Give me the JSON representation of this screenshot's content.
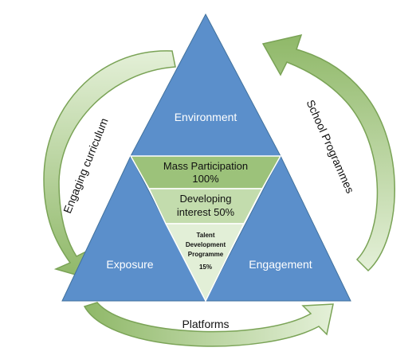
{
  "triangles": {
    "top": "Environment",
    "left": "Exposure",
    "right": "Engagement"
  },
  "funnel": {
    "tier1": {
      "line1": "Mass Participation",
      "line2": "100%"
    },
    "tier2": {
      "line1": "Developing",
      "line2": "interest 50%"
    },
    "tier3": {
      "line1": "Talent",
      "line2": "Development",
      "line3": "Programme",
      "line4": "15%"
    }
  },
  "arrows": {
    "left": "Engaging curriculum",
    "right": "School Programmes",
    "bottom": "Platforms"
  },
  "colors": {
    "triangle_blue": "#5b8fcb",
    "tier1_green": "#9cc27a",
    "tier2_green": "#c3dcad",
    "tier3_green": "#e2efd7",
    "arrow_green_light": "#e4f0d8",
    "arrow_green_dark": "#8fb868",
    "arrow_stroke": "#7aa356"
  }
}
